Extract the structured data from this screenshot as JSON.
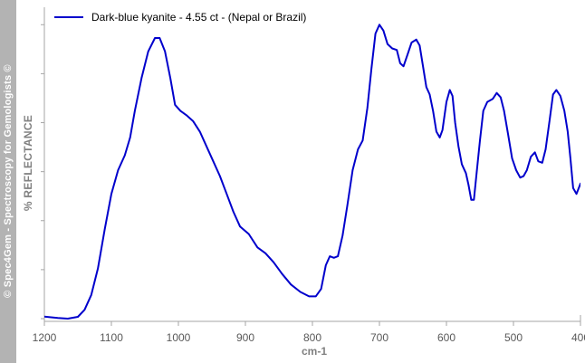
{
  "sidebar_text": "© Spec4Gem - Spectroscopy for Gemologists ©",
  "colors": {
    "sidebar": "#b3b3b3",
    "series": "#0000cc",
    "axis": "#a6a6a6"
  },
  "chart_data": {
    "type": "line",
    "title": "",
    "xlabel": "cm-1",
    "ylabel": "%  REFLECTANCE",
    "xlim": [
      1200,
      400
    ],
    "x_reversed": true,
    "ylim": [
      0,
      100
    ],
    "y_tick_labels_shown": false,
    "y_ticks": [
      0,
      16.5,
      33,
      49.5,
      66,
      82.5,
      99
    ],
    "x_ticks": [
      1200,
      1100,
      1000,
      900,
      800,
      700,
      600,
      500,
      400
    ],
    "x_tick_labels": [
      "1200",
      "1100",
      "1000",
      "900",
      "800",
      "700",
      "600",
      "500",
      "400"
    ],
    "grid": false,
    "legend": "top-left",
    "series": [
      {
        "name": "Dark-blue kyanite - 4.55 ct - (Nepal or Brazil)",
        "color": "#0000cc",
        "points": [
          [
            1205,
            0.8
          ],
          [
            1180,
            0.2
          ],
          [
            1165,
            0
          ],
          [
            1150,
            0.6
          ],
          [
            1140,
            3
          ],
          [
            1130,
            8
          ],
          [
            1120,
            17
          ],
          [
            1110,
            30
          ],
          [
            1100,
            42
          ],
          [
            1090,
            50
          ],
          [
            1080,
            55
          ],
          [
            1072,
            61
          ],
          [
            1065,
            70
          ],
          [
            1055,
            81
          ],
          [
            1045,
            90
          ],
          [
            1035,
            94.5
          ],
          [
            1028,
            94.5
          ],
          [
            1020,
            90
          ],
          [
            1012,
            81
          ],
          [
            1005,
            72
          ],
          [
            997,
            70
          ],
          [
            988,
            68.5
          ],
          [
            978,
            66.5
          ],
          [
            968,
            63
          ],
          [
            958,
            58
          ],
          [
            948,
            53
          ],
          [
            938,
            48
          ],
          [
            928,
            42
          ],
          [
            918,
            36
          ],
          [
            908,
            31
          ],
          [
            895,
            28.5
          ],
          [
            882,
            24
          ],
          [
            870,
            22
          ],
          [
            858,
            19
          ],
          [
            845,
            15
          ],
          [
            832,
            11.5
          ],
          [
            818,
            9
          ],
          [
            805,
            7.5
          ],
          [
            795,
            7.5
          ],
          [
            787,
            10
          ],
          [
            780,
            18
          ],
          [
            774,
            21
          ],
          [
            768,
            20.5
          ],
          [
            762,
            21
          ],
          [
            755,
            28
          ],
          [
            748,
            38
          ],
          [
            740,
            50
          ],
          [
            732,
            57
          ],
          [
            725,
            60
          ],
          [
            718,
            71
          ],
          [
            712,
            84
          ],
          [
            706,
            96
          ],
          [
            700,
            99
          ],
          [
            694,
            97
          ],
          [
            688,
            92.5
          ],
          [
            681,
            91
          ],
          [
            674,
            90.5
          ],
          [
            669,
            86
          ],
          [
            664,
            85
          ],
          [
            658,
            89
          ],
          [
            652,
            93
          ],
          [
            645,
            94
          ],
          [
            640,
            92
          ],
          [
            635,
            85
          ],
          [
            630,
            78
          ],
          [
            625,
            75.5
          ],
          [
            620,
            70
          ],
          [
            615,
            63
          ],
          [
            610,
            61
          ],
          [
            606,
            63.5
          ],
          [
            600,
            73
          ],
          [
            595,
            77
          ],
          [
            591,
            75
          ],
          [
            587,
            66
          ],
          [
            582,
            58
          ],
          [
            577,
            52
          ],
          [
            571,
            49
          ],
          [
            567,
            45
          ],
          [
            563,
            40
          ],
          [
            559,
            40
          ],
          [
            555,
            49
          ],
          [
            550,
            60
          ],
          [
            545,
            70
          ],
          [
            539,
            73
          ],
          [
            531,
            74
          ],
          [
            525,
            76
          ],
          [
            519,
            74.5
          ],
          [
            514,
            70
          ],
          [
            508,
            62
          ],
          [
            502,
            54
          ],
          [
            496,
            50
          ],
          [
            490,
            47.5
          ],
          [
            485,
            48
          ],
          [
            480,
            50
          ],
          [
            474,
            54.5
          ],
          [
            468,
            56
          ],
          [
            463,
            53
          ],
          [
            457,
            52.5
          ],
          [
            452,
            57
          ],
          [
            446,
            67
          ],
          [
            441,
            75.5
          ],
          [
            436,
            77
          ],
          [
            430,
            75
          ],
          [
            424,
            70
          ],
          [
            419,
            63
          ],
          [
            415,
            54
          ],
          [
            411,
            44
          ],
          [
            406,
            42
          ],
          [
            400,
            45.5
          ],
          [
            396,
            43
          ],
          [
            393,
            40
          ]
        ]
      }
    ]
  }
}
